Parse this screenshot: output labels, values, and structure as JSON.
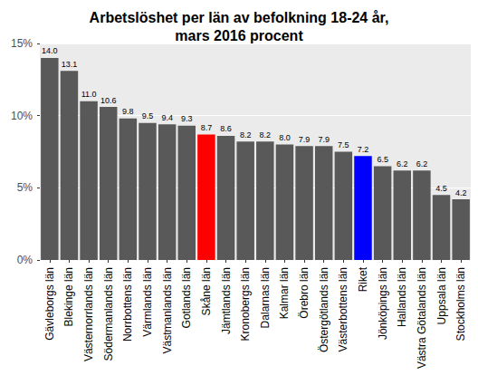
{
  "chart_data": {
    "type": "bar",
    "title": "Arbetslöshet per län av befolkning 18-24 år,\nmars 2016 procent",
    "categories": [
      "Gävleborgs län",
      "Blekinge län",
      "Västernorrlands län",
      "Södermanlands län",
      "Norrbottens län",
      "Värmlands län",
      "Västmanlands län",
      "Gotlands län",
      "Skåne län",
      "Jämtlands län",
      "Kronobergs län",
      "Dalarnas län",
      "Kalmar län",
      "Örebro län",
      "Östergötlands län",
      "Västerbottens län",
      "Riket",
      "Jönköpings län",
      "Hallands län",
      "Västra Götalands län",
      "Uppsala län",
      "Stockholms län"
    ],
    "values": [
      14.0,
      13.1,
      11.0,
      10.6,
      9.8,
      9.5,
      9.4,
      9.3,
      8.7,
      8.6,
      8.2,
      8.2,
      8.0,
      7.9,
      7.9,
      7.5,
      7.2,
      6.5,
      6.2,
      6.2,
      4.5,
      4.2
    ],
    "value_labels": [
      "14.0",
      "13.1",
      "11.0",
      "10.6",
      "9.8",
      "9.5",
      "9.4",
      "9.3",
      "8.7",
      "8.6",
      "8.2",
      "8.2",
      "8.0",
      "7.9",
      "7.9",
      "7.5",
      "7.2",
      "6.5",
      "6.2",
      "6.2",
      "4.5",
      "4.2"
    ],
    "colors": [
      "#595959",
      "#595959",
      "#595959",
      "#595959",
      "#595959",
      "#595959",
      "#595959",
      "#595959",
      "#ff0000",
      "#595959",
      "#595959",
      "#595959",
      "#595959",
      "#595959",
      "#595959",
      "#595959",
      "#0000ff",
      "#595959",
      "#595959",
      "#595959",
      "#595959",
      "#595959"
    ],
    "ylim": [
      0,
      15
    ],
    "yticks": [
      {
        "value": 0,
        "label": "0%"
      },
      {
        "value": 5,
        "label": "5%"
      },
      {
        "value": 10,
        "label": "10%"
      },
      {
        "value": 15,
        "label": "15%"
      }
    ],
    "grid": true,
    "data_labels": true
  }
}
